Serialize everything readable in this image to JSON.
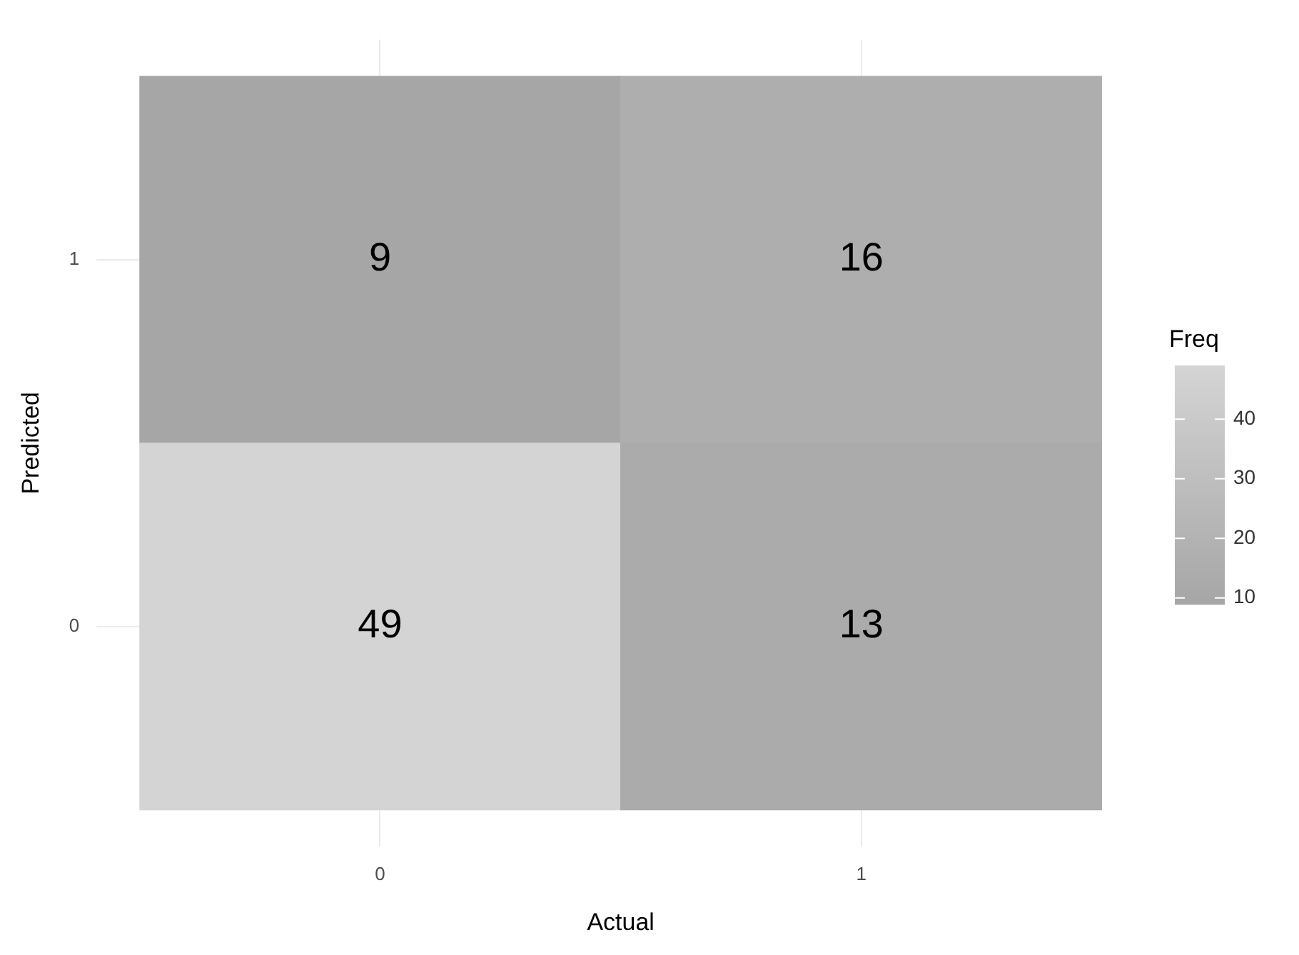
{
  "chart_data": {
    "type": "heatmap",
    "xlabel": "Actual",
    "ylabel": "Predicted",
    "legend_title": "Freq",
    "categories": [
      "0",
      "1"
    ],
    "y_categories": [
      "1",
      "0"
    ],
    "cells": [
      [
        9,
        16
      ],
      [
        49,
        13
      ]
    ],
    "data_labels": true,
    "grid": true,
    "clim": [
      9,
      49
    ],
    "cticks": [
      10,
      20,
      30,
      40
    ]
  }
}
